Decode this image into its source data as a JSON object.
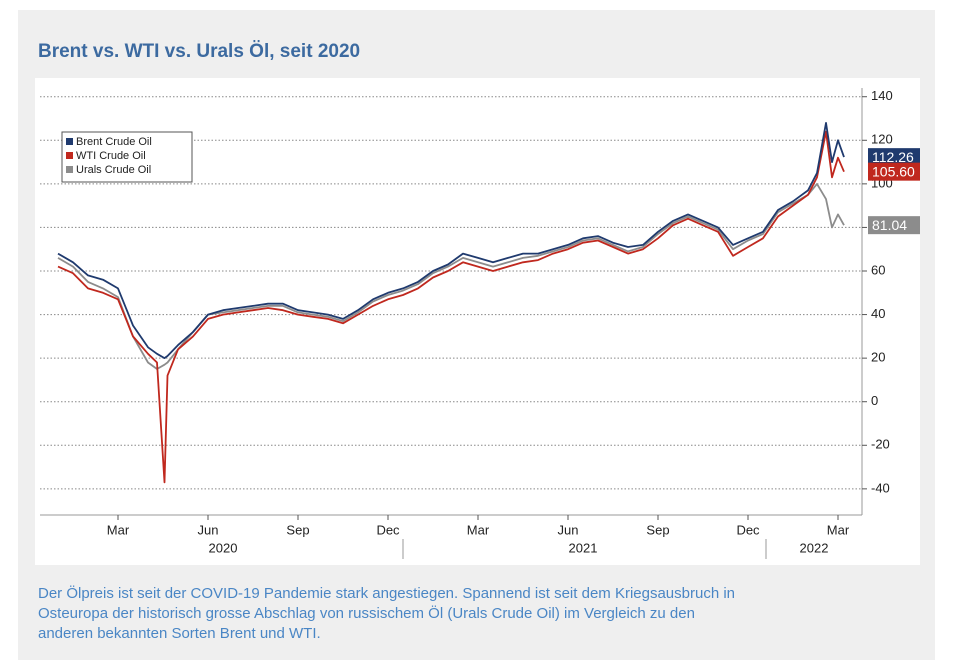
{
  "chart_data": {
    "type": "line",
    "title": "Brent vs. WTI vs. Urals Öl, seit 2020",
    "caption": "Der Ölpreis ist seit der COVID-19 Pandemie stark angestiegen. Spannend ist seit dem Kriegsausbruch in Osteuropa der historisch grosse Abschlag von russischem Öl (Urals Crude Oil) im Vergleich zu den anderen bekannten Sorten Brent und WTI.",
    "x": [
      0,
      0.5,
      1,
      1.5,
      2,
      2.5,
      3,
      3.3,
      3.55,
      3.65,
      4,
      4.5,
      5,
      5.5,
      6,
      6.5,
      7,
      7.5,
      8,
      8.5,
      9,
      9.5,
      10,
      10.5,
      11,
      11.5,
      12,
      12.5,
      13,
      13.5,
      14,
      14.5,
      15,
      15.5,
      16,
      16.5,
      17,
      17.5,
      18,
      18.5,
      19,
      19.5,
      20,
      20.5,
      21,
      21.5,
      22,
      22.5,
      23,
      23.5,
      24,
      24.5,
      25,
      25.3,
      25.6,
      25.8,
      26,
      26.2
    ],
    "xlim": [
      -0.6,
      26.8
    ],
    "xticks": [
      {
        "value": 2,
        "label": "Mar"
      },
      {
        "value": 5,
        "label": "Jun"
      },
      {
        "value": 8,
        "label": "Sep"
      },
      {
        "value": 11,
        "label": "Dec"
      },
      {
        "value": 14,
        "label": "Mar"
      },
      {
        "value": 17,
        "label": "Jun"
      },
      {
        "value": 20,
        "label": "Sep"
      },
      {
        "value": 23,
        "label": "Dec"
      },
      {
        "value": 26,
        "label": "Mar"
      }
    ],
    "year_labels": [
      {
        "value": 5.5,
        "label": "2020"
      },
      {
        "value": 17.5,
        "label": "2021"
      },
      {
        "value": 25.2,
        "label": "2022"
      }
    ],
    "ylim": [
      -52,
      144
    ],
    "yticks": [
      140,
      120,
      100,
      80,
      60,
      40,
      20,
      0,
      -20,
      -40
    ],
    "grid": true,
    "legend": "upper left",
    "series": [
      {
        "name": "Brent Crude Oil",
        "color": "#1f3a6e",
        "end_label": "112.26",
        "values": [
          68,
          64,
          58,
          56,
          52,
          35,
          25,
          22,
          20,
          21,
          26,
          32,
          40,
          42,
          43,
          44,
          45,
          45,
          42,
          41,
          40,
          38,
          42,
          47,
          50,
          52,
          55,
          60,
          63,
          68,
          66,
          64,
          66,
          68,
          68,
          70,
          72,
          75,
          76,
          73,
          71,
          72,
          78,
          83,
          86,
          83,
          80,
          72,
          75,
          78,
          88,
          92,
          97,
          105,
          128,
          110,
          120,
          112.26
        ]
      },
      {
        "name": "WTI Crude Oil",
        "color": "#c0281e",
        "end_label": "105.60",
        "values": [
          62,
          59,
          52,
          50,
          47,
          30,
          22,
          18,
          -37,
          12,
          24,
          30,
          38,
          40,
          41,
          42,
          43,
          42,
          40,
          39,
          38,
          36,
          40,
          44,
          47,
          49,
          52,
          57,
          60,
          64,
          62,
          60,
          62,
          64,
          65,
          68,
          70,
          73,
          74,
          71,
          68,
          70,
          75,
          81,
          84,
          81,
          78,
          67,
          71,
          75,
          85,
          90,
          95,
          103,
          124,
          103,
          112,
          105.6
        ]
      },
      {
        "name": "Urals Crude Oil",
        "color": "#8c8c8c",
        "end_label": "81.04",
        "values": [
          66,
          62,
          55,
          52,
          48,
          30,
          18,
          15,
          17,
          18,
          24,
          32,
          40,
          41,
          42,
          43,
          44,
          44,
          41,
          40,
          39,
          37,
          41,
          46,
          49,
          51,
          54,
          59,
          62,
          66,
          64,
          62,
          64,
          66,
          67,
          69,
          71,
          74,
          75,
          72,
          69,
          71,
          77,
          82,
          85,
          82,
          79,
          70,
          74,
          77,
          87,
          91,
          95,
          100,
          93,
          80,
          86,
          81.04
        ]
      }
    ]
  }
}
